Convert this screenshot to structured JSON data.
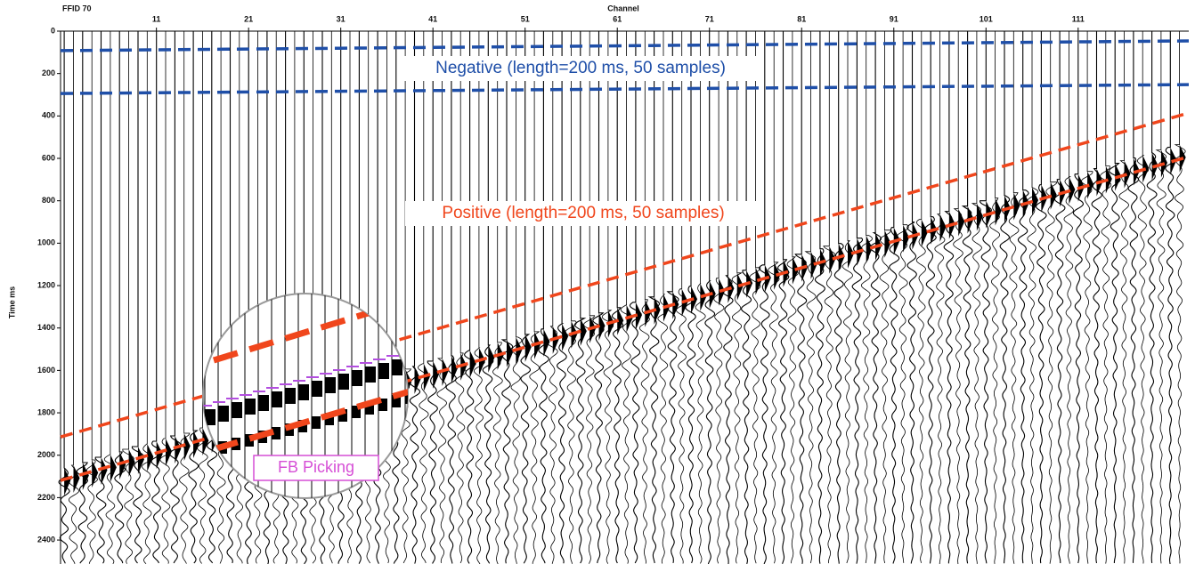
{
  "chart_data": {
    "type": "seismic-gather",
    "title": "FFID 70",
    "x_label": "Channel",
    "y_label": "Time ms",
    "xlim": [
      0.6,
      123
    ],
    "ylim": [
      0,
      2513
    ],
    "xticks": [
      11,
      21,
      31,
      41,
      51,
      61,
      71,
      81,
      91,
      101,
      111
    ],
    "yticks": [
      0,
      200,
      400,
      600,
      800,
      1000,
      1200,
      1400,
      1600,
      1800,
      2000,
      2200,
      2400
    ],
    "y_reversed": true,
    "x": [
      0.6,
      123
    ],
    "series": [
      {
        "color": "#1f4fa8",
        "values": [
          92,
          46
        ]
      },
      {
        "color": "#1f4fa8",
        "values": [
          294,
          252
        ]
      },
      {
        "color": "#f0461c",
        "values": [
          1914,
          386
        ]
      },
      {
        "color": "#f0461c",
        "values": [
          2119,
          592
        ]
      }
    ],
    "annotations": [
      "Negative (length=200 ms, 50 samples)",
      "Positive (length=200 ms, 50 samples)",
      "FB Picking"
    ]
  }
}
